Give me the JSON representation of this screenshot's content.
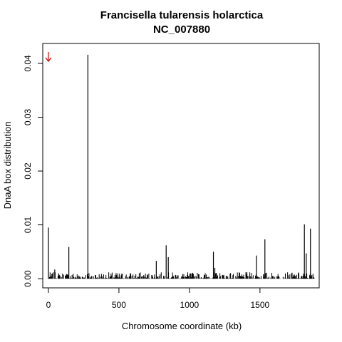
{
  "chart_data": {
    "type": "bar",
    "title": "Francisella tularensis holarctica",
    "subtitle": "NC_007880",
    "xlabel": "Chromosome coordinate (kb)",
    "ylabel": "DnaA box distribution",
    "xlim": [
      -40,
      1920
    ],
    "ylim": [
      -0.0017,
      0.0437
    ],
    "xticks": [
      0,
      500,
      1000,
      1500
    ],
    "xtick_labels": [
      "0",
      "500",
      "1000",
      "1500"
    ],
    "yticks": [
      0.0,
      0.01,
      0.02,
      0.03,
      0.04
    ],
    "ytick_labels": [
      "0.00",
      "0.01",
      "0.02",
      "0.03",
      "0.04"
    ],
    "grid": false,
    "marker": {
      "x": 0,
      "color": "#cc0000",
      "shape": "arrow-down"
    },
    "spikes": {
      "x": [
        0,
        45,
        145,
        280,
        765,
        835,
        850,
        1170,
        1180,
        1475,
        1535,
        1815,
        1828,
        1858
      ],
      "values": [
        0.0095,
        0.0017,
        0.0059,
        0.0416,
        0.0033,
        0.0062,
        0.004,
        0.005,
        0.002,
        0.0043,
        0.0073,
        0.0101,
        0.0047,
        0.0093
      ]
    },
    "baseline": {
      "x_range": [
        0,
        1890
      ],
      "typical_max": 0.0012
    }
  }
}
